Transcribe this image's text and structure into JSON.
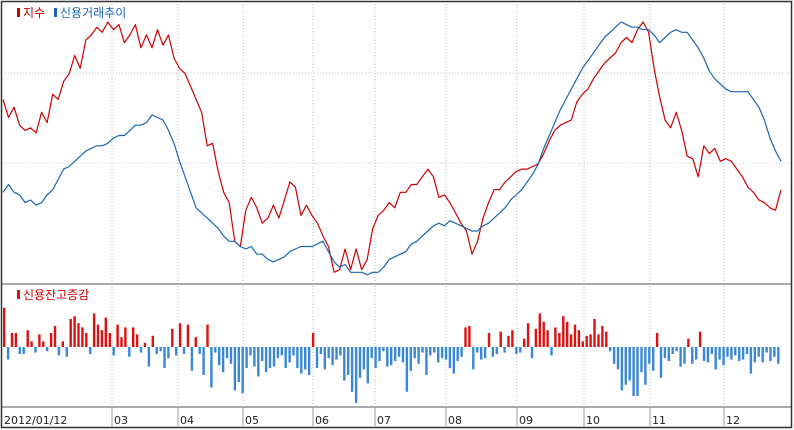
{
  "chart_data": [
    {
      "type": "line",
      "legend": {
        "placement": "top-left"
      },
      "grid": true,
      "series": [
        {
          "name": "지수",
          "color": "#cc0000",
          "values": [
            70,
            63,
            67,
            60,
            58,
            59,
            57,
            65,
            61,
            72,
            70,
            77,
            80,
            87,
            82,
            93,
            95,
            98,
            96,
            100,
            97,
            99,
            92,
            95,
            99,
            90,
            95,
            90,
            97,
            91,
            95,
            86,
            82,
            80,
            75,
            70,
            65,
            52,
            53,
            42,
            34,
            30,
            15,
            13,
            27,
            32,
            28,
            22,
            24,
            29,
            24,
            31,
            38,
            36,
            25,
            29,
            25,
            22,
            17,
            13,
            3,
            4,
            12,
            4,
            12,
            4,
            8,
            20,
            25,
            27,
            30,
            28,
            34,
            34,
            37,
            37,
            40,
            43,
            40,
            32,
            33,
            30,
            26,
            22,
            19,
            10,
            15,
            24,
            30,
            35,
            35,
            38,
            40,
            42,
            43,
            43,
            44,
            45,
            49,
            54,
            58,
            60,
            61,
            62,
            69,
            72,
            74,
            78,
            81,
            84,
            86,
            88,
            92,
            94,
            92,
            97,
            100,
            96,
            82,
            71,
            62,
            59,
            65,
            58,
            48,
            47,
            40,
            52,
            49,
            51,
            46,
            47,
            46,
            43,
            40,
            36,
            34,
            31,
            30,
            28,
            27,
            35
          ]
        },
        {
          "name": "신용거래추이",
          "color": "#1a66b3",
          "values": [
            34,
            37,
            34,
            33,
            30,
            31,
            29,
            30,
            33,
            35,
            39,
            43,
            44,
            46,
            48,
            50,
            51,
            52,
            52,
            53,
            55,
            56,
            56,
            58,
            60,
            60,
            61,
            64,
            63,
            62,
            58,
            53,
            46,
            40,
            34,
            28,
            26,
            24,
            22,
            20,
            17,
            15,
            15,
            13,
            12,
            13,
            10,
            10,
            8,
            7,
            8,
            9,
            11,
            12,
            13,
            13,
            13,
            14,
            15,
            11,
            7,
            5,
            6,
            3,
            3,
            3,
            2,
            3,
            3,
            5,
            8,
            9,
            10,
            11,
            14,
            15,
            17,
            19,
            21,
            22,
            21,
            23,
            22,
            21,
            20,
            19,
            19,
            21,
            22,
            24,
            26,
            28,
            31,
            33,
            35,
            38,
            41,
            45,
            51,
            56,
            61,
            66,
            70,
            74,
            78,
            82,
            85,
            88,
            91,
            94,
            96,
            98,
            100,
            99,
            98,
            98,
            97,
            97,
            95,
            92,
            94,
            96,
            97,
            96,
            96,
            93,
            90,
            86,
            81,
            78,
            76,
            74,
            73,
            73,
            73,
            73,
            70,
            67,
            62,
            55,
            50,
            46
          ]
        }
      ]
    },
    {
      "type": "bar",
      "legend": {
        "placement": "top-left"
      },
      "grid": true,
      "colors": {
        "positive": "#dd1111",
        "negative": "#3a87d8"
      },
      "series": [
        {
          "name": "신용잔고증감",
          "values": [
            28,
            -9,
            10,
            10,
            -5,
            -5,
            12,
            4,
            -4,
            9,
            4,
            -3,
            10,
            15,
            -6,
            4,
            -7,
            20,
            22,
            17,
            14,
            10,
            -5,
            24,
            16,
            12,
            21,
            10,
            -6,
            16,
            7,
            14,
            -7,
            14,
            9,
            -4,
            3,
            -14,
            8,
            -5,
            -3,
            -15,
            -8,
            13,
            -6,
            17,
            -5,
            16,
            -17,
            7,
            -5,
            -20,
            16,
            -29,
            -4,
            -13,
            -18,
            -8,
            -12,
            -31,
            -25,
            -33,
            -15,
            -6,
            -14,
            -21,
            -10,
            -18,
            -15,
            -14,
            -8,
            -6,
            -15,
            -11,
            -6,
            -15,
            -19,
            -16,
            -20,
            10,
            -15,
            -5,
            -16,
            -8,
            -13,
            -9,
            -6,
            -24,
            -20,
            -32,
            -40,
            -22,
            -16,
            -26,
            -8,
            -15,
            -10,
            -3,
            -14,
            -13,
            -10,
            -7,
            -11,
            -32,
            -17,
            -8,
            -12,
            -4,
            -20,
            -6,
            -4,
            -11,
            -8,
            -9,
            -15,
            -19,
            -10,
            -7,
            14,
            15,
            -16,
            -4,
            -9,
            -8,
            10,
            -7,
            -5,
            11,
            -4,
            8,
            12,
            -5,
            -4,
            6,
            17,
            -8,
            13,
            24,
            18,
            12,
            -6,
            14,
            10,
            22,
            18,
            9,
            16,
            12,
            4,
            8,
            9,
            20,
            9,
            15,
            11,
            -3,
            -12,
            -16,
            -31,
            -27,
            -24,
            -35,
            -35,
            -18,
            -27,
            -12,
            -17,
            10,
            -22,
            -8,
            -10,
            -5,
            -3,
            -14,
            -12,
            6,
            -12,
            -9,
            11,
            -10,
            -11,
            -5,
            -16,
            -9,
            -13,
            -7,
            -9,
            -6,
            -10,
            -9,
            -5,
            -19,
            -11,
            -7,
            -11,
            -4,
            -10,
            -7,
            -12
          ]
        }
      ]
    }
  ],
  "x_axis": {
    "tick_labels": [
      "2012/01/12",
      "03",
      "04",
      "05",
      "06",
      "07",
      "08",
      "09",
      "10",
      "11",
      "12"
    ]
  }
}
